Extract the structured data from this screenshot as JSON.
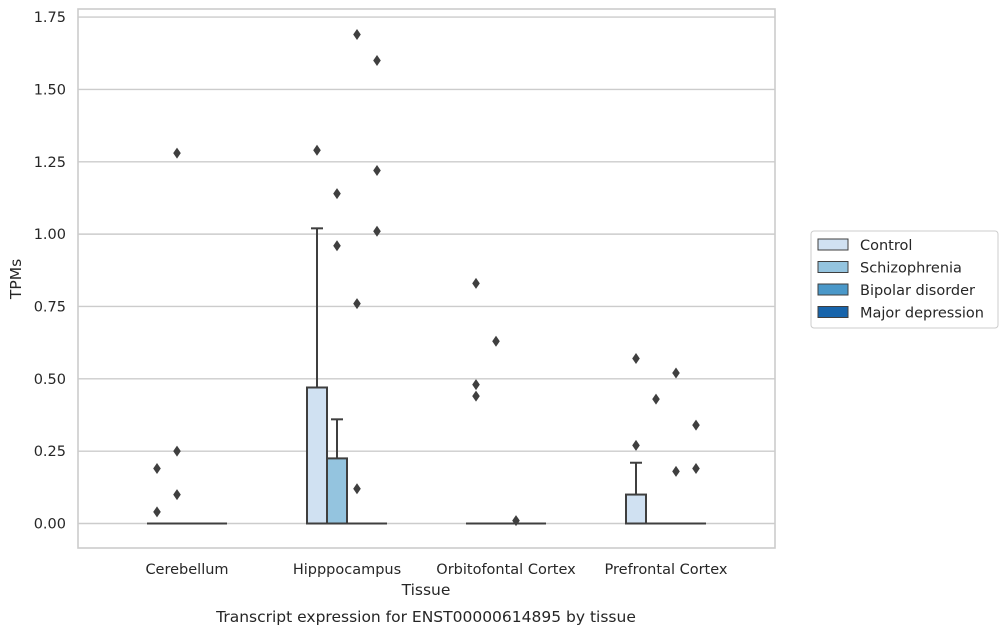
{
  "chart_data": {
    "type": "box",
    "xlabel": "Tissue",
    "ylabel": "TPMs",
    "caption": "Transcript expression for ENST00000614895 by tissue",
    "ylim": [
      -0.08,
      1.77
    ],
    "yticks": [
      "0.00",
      "0.25",
      "0.50",
      "0.75",
      "1.00",
      "1.25",
      "1.50",
      "1.75"
    ],
    "ytick_values": [
      0,
      0.25,
      0.5,
      0.75,
      1.0,
      1.25,
      1.5,
      1.75
    ],
    "grid": "horizontal",
    "legend_position": "right",
    "categories": [
      "Cerebellum",
      "Hipppocampus",
      "Orbitofontal Cortex",
      "Prefrontal Cortex"
    ],
    "series": [
      {
        "name": "Control",
        "color": "#d0e1f2",
        "boxes": [
          {
            "q1": 0,
            "median": 0,
            "q3": 0,
            "whisker_low": 0,
            "whisker_high": 0,
            "outliers": [
              0.19,
              0.04
            ]
          },
          {
            "q1": 0,
            "median": 0,
            "q3": 0.47,
            "whisker_low": 0,
            "whisker_high": 1.02,
            "outliers": [
              1.29
            ]
          },
          {
            "q1": 0,
            "median": 0,
            "q3": 0,
            "whisker_low": 0,
            "whisker_high": 0,
            "outliers": [
              0.83,
              0.48,
              0.44
            ]
          },
          {
            "q1": 0,
            "median": 0,
            "q3": 0.1,
            "whisker_low": 0,
            "whisker_high": 0.21,
            "outliers": [
              0.57,
              0.27
            ]
          }
        ]
      },
      {
        "name": "Schizophrenia",
        "color": "#94c4df",
        "boxes": [
          {
            "q1": 0,
            "median": 0,
            "q3": 0,
            "whisker_low": 0,
            "whisker_high": 0,
            "outliers": [
              1.28,
              0.25,
              0.1
            ]
          },
          {
            "q1": 0,
            "median": 0,
            "q3": 0.225,
            "whisker_low": 0,
            "whisker_high": 0.36,
            "outliers": [
              1.14,
              0.96
            ]
          },
          {
            "q1": 0,
            "median": 0,
            "q3": 0,
            "whisker_low": 0,
            "whisker_high": 0,
            "outliers": [
              0.63
            ]
          },
          {
            "q1": 0,
            "median": 0,
            "q3": 0,
            "whisker_low": 0,
            "whisker_high": 0,
            "outliers": [
              0.43
            ]
          }
        ]
      },
      {
        "name": "Bipolar disorder",
        "color": "#4a98c9",
        "boxes": [
          {
            "q1": 0,
            "median": 0,
            "q3": 0,
            "whisker_low": 0,
            "whisker_high": 0,
            "outliers": []
          },
          {
            "q1": 0,
            "median": 0,
            "q3": 0,
            "whisker_low": 0,
            "whisker_high": 0,
            "outliers": [
              1.69,
              0.76,
              0.12
            ]
          },
          {
            "q1": 0,
            "median": 0,
            "q3": 0,
            "whisker_low": 0,
            "whisker_high": 0,
            "outliers": [
              0.01
            ]
          },
          {
            "q1": 0,
            "median": 0,
            "q3": 0,
            "whisker_low": 0,
            "whisker_high": 0,
            "outliers": [
              0.52,
              0.18
            ]
          }
        ]
      },
      {
        "name": "Major depression",
        "color": "#1764ab",
        "boxes": [
          {
            "q1": 0,
            "median": 0,
            "q3": 0,
            "whisker_low": 0,
            "whisker_high": 0,
            "outliers": []
          },
          {
            "q1": 0,
            "median": 0,
            "q3": 0,
            "whisker_low": 0,
            "whisker_high": 0,
            "outliers": [
              1.6,
              1.22,
              1.01
            ]
          },
          {
            "q1": 0,
            "median": 0,
            "q3": 0,
            "whisker_low": 0,
            "whisker_high": 0,
            "outliers": []
          },
          {
            "q1": 0,
            "median": 0,
            "q3": 0,
            "whisker_low": 0,
            "whisker_high": 0,
            "outliers": [
              0.34,
              0.19
            ]
          }
        ]
      }
    ]
  }
}
